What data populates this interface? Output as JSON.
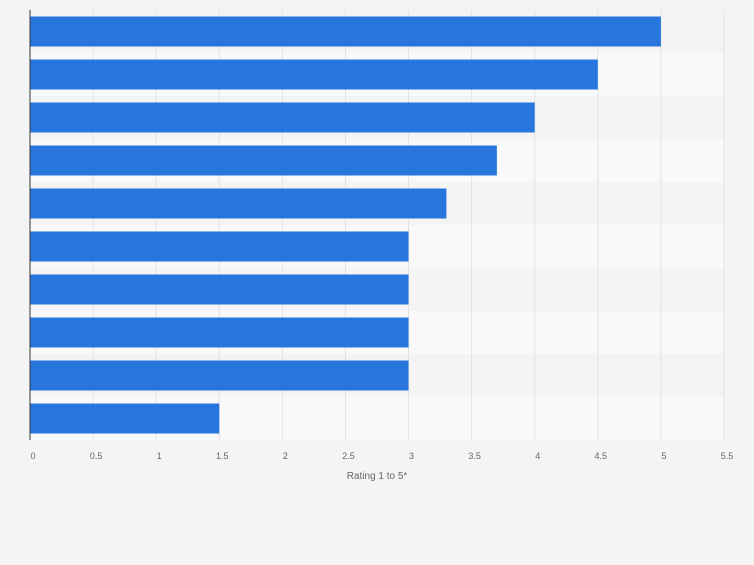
{
  "chart_data": {
    "type": "bar",
    "orientation": "horizontal",
    "categories": [
      "",
      "",
      "",
      "",
      "",
      "",
      "",
      "",
      "",
      ""
    ],
    "values": [
      5.0,
      4.5,
      4.0,
      3.7,
      3.3,
      3.0,
      3.0,
      3.0,
      3.0,
      1.5
    ],
    "xlabel": "Rating 1 to 5*",
    "ylabel": "",
    "xlim": [
      0,
      5.5
    ],
    "x_ticks": [
      "0",
      "0.5",
      "1",
      "1.5",
      "2",
      "2.5",
      "3",
      "3.5",
      "4",
      "4.5",
      "5",
      "5.5"
    ],
    "grid": true,
    "bar_color": "#2876dd",
    "band_colors": [
      "#f4f4f4",
      "#f9f9f9"
    ]
  }
}
